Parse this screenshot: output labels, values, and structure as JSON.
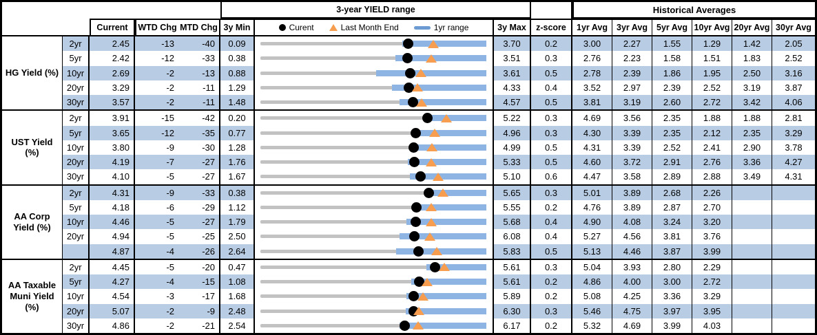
{
  "header": {
    "range_title": "3-year YIELD range",
    "hist_title": "Historical Averages",
    "col_current": "Current",
    "col_wtd": "WTD Chg",
    "col_mtd": "MTD Chg",
    "col_min": "3y Min",
    "col_max": "3y Max",
    "col_z": "z-score",
    "avg_cols": [
      "1yr Avg",
      "3yr Avg",
      "5yr Avg",
      "10yr Avg",
      "20yr Avg",
      "30yr Avg"
    ],
    "legend": {
      "current_label": "Curent",
      "last_month_label": "Last Month End",
      "range_label": "1yr range"
    }
  },
  "colors": {
    "stripe_blue": "#b8cce4",
    "bar_blue": "#8eb4e3",
    "legend_dash_blue": "#6b9bd2",
    "triangle_orange": "#f79d4f",
    "track_gray": "#c2c2c2",
    "dot_black": "#000000"
  },
  "chart_data": {
    "type": "table",
    "note": "Each row has an embedded dot-range plot spanning 3y Min to 3y Max: gray track = 3y range, blue bar = 1yr range, black dot = current yield, orange triangle = last month end yield.",
    "groups": [
      {
        "label": "HG Yield (%)",
        "rows": [
          {
            "tenor": "2yr",
            "current": "2.45",
            "wtd": "-13",
            "mtd": "-40",
            "min": "0.09",
            "max": "3.70",
            "z": "0.2",
            "avgs": [
              "3.00",
              "2.27",
              "1.55",
              "1.29",
              "1.42",
              "2.05"
            ],
            "plot": {
              "rmin": 0.09,
              "rmax": 3.7,
              "bar_lo": 2.36,
              "bar_hi": 3.7,
              "dot": 2.45,
              "tri": 2.85
            }
          },
          {
            "tenor": "5yr",
            "current": "2.42",
            "wtd": "-12",
            "mtd": "-33",
            "min": "0.38",
            "max": "3.51",
            "z": "0.3",
            "avgs": [
              "2.76",
              "2.23",
              "1.58",
              "1.51",
              "1.83",
              "2.52"
            ],
            "plot": {
              "rmin": 0.38,
              "rmax": 3.51,
              "bar_lo": 2.25,
              "bar_hi": 3.51,
              "dot": 2.42,
              "tri": 2.75
            }
          },
          {
            "tenor": "10yr",
            "current": "2.69",
            "wtd": "-2",
            "mtd": "-13",
            "min": "0.88",
            "max": "3.61",
            "z": "0.5",
            "avgs": [
              "2.78",
              "2.39",
              "1.86",
              "1.95",
              "2.50",
              "3.16"
            ],
            "plot": {
              "rmin": 0.88,
              "rmax": 3.61,
              "bar_lo": 2.28,
              "bar_hi": 3.61,
              "dot": 2.69,
              "tri": 2.82
            }
          },
          {
            "tenor": "20yr",
            "current": "3.29",
            "wtd": "-2",
            "mtd": "-11",
            "min": "1.29",
            "max": "4.33",
            "z": "0.4",
            "avgs": [
              "3.52",
              "2.97",
              "2.39",
              "2.52",
              "3.19",
              "3.87"
            ],
            "plot": {
              "rmin": 1.29,
              "rmax": 4.33,
              "bar_lo": 3.06,
              "bar_hi": 4.33,
              "dot": 3.29,
              "tri": 3.4
            }
          },
          {
            "tenor": "30yr",
            "current": "3.57",
            "wtd": "-2",
            "mtd": "-11",
            "min": "1.48",
            "max": "4.57",
            "z": "0.5",
            "avgs": [
              "3.81",
              "3.19",
              "2.60",
              "2.72",
              "3.42",
              "4.06"
            ],
            "plot": {
              "rmin": 1.48,
              "rmax": 4.57,
              "bar_lo": 3.38,
              "bar_hi": 4.57,
              "dot": 3.57,
              "tri": 3.68
            }
          }
        ]
      },
      {
        "label": "UST Yield (%)",
        "rows": [
          {
            "tenor": "2yr",
            "current": "3.91",
            "wtd": "-15",
            "mtd": "-42",
            "min": "0.20",
            "max": "5.22",
            "z": "0.3",
            "avgs": [
              "4.69",
              "3.56",
              "2.35",
              "1.88",
              "1.88",
              "2.81"
            ],
            "plot": {
              "rmin": 0.2,
              "rmax": 5.22,
              "bar_lo": 3.82,
              "bar_hi": 5.22,
              "dot": 3.91,
              "tri": 4.33
            }
          },
          {
            "tenor": "5yr",
            "current": "3.65",
            "wtd": "-12",
            "mtd": "-35",
            "min": "0.77",
            "max": "4.96",
            "z": "0.3",
            "avgs": [
              "4.30",
              "3.39",
              "2.35",
              "2.12",
              "2.35",
              "3.29"
            ],
            "plot": {
              "rmin": 0.77,
              "rmax": 4.96,
              "bar_lo": 3.59,
              "bar_hi": 4.96,
              "dot": 3.65,
              "tri": 4.0
            }
          },
          {
            "tenor": "10yr",
            "current": "3.80",
            "wtd": "-9",
            "mtd": "-30",
            "min": "1.28",
            "max": "4.99",
            "z": "0.5",
            "avgs": [
              "4.31",
              "3.39",
              "2.52",
              "2.41",
              "2.90",
              "3.78"
            ],
            "plot": {
              "rmin": 1.28,
              "rmax": 4.99,
              "bar_lo": 3.75,
              "bar_hi": 4.99,
              "dot": 3.8,
              "tri": 4.1
            }
          },
          {
            "tenor": "20yr",
            "current": "4.19",
            "wtd": "-7",
            "mtd": "-27",
            "min": "1.76",
            "max": "5.33",
            "z": "0.5",
            "avgs": [
              "4.60",
              "3.72",
              "2.91",
              "2.76",
              "3.36",
              "4.27"
            ],
            "plot": {
              "rmin": 1.76,
              "rmax": 5.33,
              "bar_lo": 4.09,
              "bar_hi": 5.33,
              "dot": 4.19,
              "tri": 4.46
            }
          },
          {
            "tenor": "30yr",
            "current": "4.10",
            "wtd": "-5",
            "mtd": "-27",
            "min": "1.67",
            "max": "5.10",
            "z": "0.6",
            "avgs": [
              "4.47",
              "3.58",
              "2.89",
              "2.88",
              "3.49",
              "4.31"
            ],
            "plot": {
              "rmin": 1.67,
              "rmax": 5.1,
              "bar_lo": 3.94,
              "bar_hi": 5.1,
              "dot": 4.1,
              "tri": 4.37
            }
          }
        ]
      },
      {
        "label": "AA Corp Yield (%)",
        "rows": [
          {
            "tenor": "2yr",
            "current": "4.31",
            "wtd": "-9",
            "mtd": "-33",
            "min": "0.38",
            "max": "5.65",
            "z": "0.3",
            "avgs": [
              "5.01",
              "3.89",
              "2.68",
              "2.26",
              "",
              ""
            ],
            "plot": {
              "rmin": 0.38,
              "rmax": 5.65,
              "bar_lo": 4.21,
              "bar_hi": 5.65,
              "dot": 4.31,
              "tri": 4.64
            }
          },
          {
            "tenor": "5yr",
            "current": "4.18",
            "wtd": "-6",
            "mtd": "-29",
            "min": "1.12",
            "max": "5.55",
            "z": "0.2",
            "avgs": [
              "4.76",
              "3.89",
              "2.87",
              "2.70",
              "",
              ""
            ],
            "plot": {
              "rmin": 1.12,
              "rmax": 5.55,
              "bar_lo": 4.11,
              "bar_hi": 5.55,
              "dot": 4.18,
              "tri": 4.47
            }
          },
          {
            "tenor": "10yr",
            "current": "4.46",
            "wtd": "-5",
            "mtd": "-27",
            "min": "1.79",
            "max": "5.68",
            "z": "0.4",
            "avgs": [
              "4.90",
              "4.08",
              "3.24",
              "3.20",
              "",
              ""
            ],
            "plot": {
              "rmin": 1.79,
              "rmax": 5.68,
              "bar_lo": 4.3,
              "bar_hi": 5.68,
              "dot": 4.46,
              "tri": 4.73
            }
          },
          {
            "tenor": "20yr",
            "current": "4.94",
            "wtd": "-5",
            "mtd": "-25",
            "min": "2.50",
            "max": "6.08",
            "z": "0.4",
            "avgs": [
              "5.27",
              "4.56",
              "3.81",
              "3.76",
              "",
              ""
            ],
            "plot": {
              "rmin": 2.5,
              "rmax": 6.08,
              "bar_lo": 4.71,
              "bar_hi": 6.08,
              "dot": 4.94,
              "tri": 5.19
            }
          },
          {
            "tenor": "",
            "current": "4.87",
            "wtd": "-4",
            "mtd": "-26",
            "min": "2.64",
            "max": "5.83",
            "z": "0.5",
            "avgs": [
              "5.13",
              "4.46",
              "3.87",
              "3.99",
              "",
              ""
            ],
            "plot": {
              "rmin": 2.64,
              "rmax": 5.83,
              "bar_lo": 4.56,
              "bar_hi": 5.83,
              "dot": 4.87,
              "tri": 5.13
            }
          }
        ]
      },
      {
        "label": "AA Taxable Muni Yield (%)",
        "rows": [
          {
            "tenor": "2yr",
            "current": "4.45",
            "wtd": "-5",
            "mtd": "-20",
            "min": "0.47",
            "max": "5.61",
            "z": "0.3",
            "avgs": [
              "5.04",
              "3.93",
              "2.80",
              "2.29",
              "",
              ""
            ],
            "plot": {
              "rmin": 0.47,
              "rmax": 5.61,
              "bar_lo": 4.24,
              "bar_hi": 5.61,
              "dot": 4.45,
              "tri": 4.65
            }
          },
          {
            "tenor": "5yr",
            "current": "4.27",
            "wtd": "-4",
            "mtd": "-15",
            "min": "1.08",
            "max": "5.61",
            "z": "0.2",
            "avgs": [
              "4.86",
              "4.00",
              "3.00",
              "2.72",
              "",
              ""
            ],
            "plot": {
              "rmin": 1.08,
              "rmax": 5.61,
              "bar_lo": 4.1,
              "bar_hi": 5.61,
              "dot": 4.27,
              "tri": 4.42
            }
          },
          {
            "tenor": "10yr",
            "current": "4.54",
            "wtd": "-3",
            "mtd": "-17",
            "min": "1.68",
            "max": "5.89",
            "z": "0.2",
            "avgs": [
              "5.08",
              "4.25",
              "3.36",
              "3.29",
              "",
              ""
            ],
            "plot": {
              "rmin": 1.68,
              "rmax": 5.89,
              "bar_lo": 4.4,
              "bar_hi": 5.89,
              "dot": 4.54,
              "tri": 4.71
            }
          },
          {
            "tenor": "20yr",
            "current": "5.07",
            "wtd": "-2",
            "mtd": "-9",
            "min": "2.48",
            "max": "6.30",
            "z": "0.3",
            "avgs": [
              "5.46",
              "4.75",
              "3.97",
              "3.95",
              "",
              ""
            ],
            "plot": {
              "rmin": 2.48,
              "rmax": 6.3,
              "bar_lo": 4.94,
              "bar_hi": 6.3,
              "dot": 5.07,
              "tri": 5.16
            }
          },
          {
            "tenor": "30yr",
            "current": "4.86",
            "wtd": "-2",
            "mtd": "-21",
            "min": "2.54",
            "max": "6.17",
            "z": "0.2",
            "avgs": [
              "5.32",
              "4.69",
              "3.99",
              "4.03",
              "",
              ""
            ],
            "plot": {
              "rmin": 2.54,
              "rmax": 6.17,
              "bar_lo": 4.78,
              "bar_hi": 6.17,
              "dot": 4.86,
              "tri": 5.07
            }
          }
        ]
      }
    ]
  }
}
